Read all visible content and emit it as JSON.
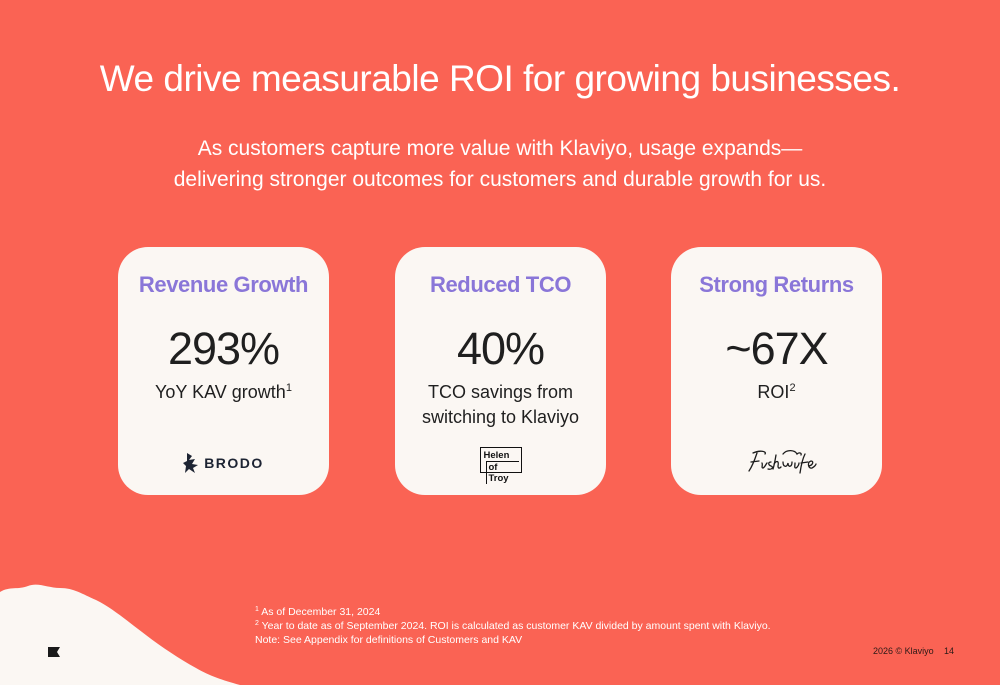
{
  "header": {
    "title": "We drive measurable ROI for growing businesses.",
    "subtitle_line1": "As customers capture more value with Klaviyo, usage expands—",
    "subtitle_line2": "delivering stronger outcomes for customers and durable growth for us."
  },
  "cards": [
    {
      "heading": "Revenue Growth",
      "stat": "293%",
      "desc": "YoY KAV growth",
      "desc_sup": "1",
      "logo": "BRODO"
    },
    {
      "heading": "Reduced TCO",
      "stat": "40%",
      "desc_line1": "TCO savings from",
      "desc_line2": "switching to Klaviyo",
      "logo_line1": "Helen",
      "logo_line2": "of Troy"
    },
    {
      "heading": "Strong Returns",
      "stat": "~67X",
      "desc": "ROI",
      "desc_sup": "2",
      "logo": "Fishwife"
    }
  ],
  "footnotes": {
    "n1_mark": "1",
    "n1": "As of December 31, 2024",
    "n2_mark": "2",
    "n2": "Year to date as of September 2024. ROI is calculated as customer KAV divided by amount spent with Klaviyo.",
    "note": "Note: See Appendix for definitions of Customers and KAV"
  },
  "footer": {
    "copyright": "2026 © Klaviyo",
    "page_number": "14"
  },
  "colors": {
    "background": "#fa6354",
    "card": "#fbf7f3",
    "heading_accent": "#8a76d8"
  },
  "icons": {
    "brand_mark": "klaviyo-flag-icon"
  }
}
